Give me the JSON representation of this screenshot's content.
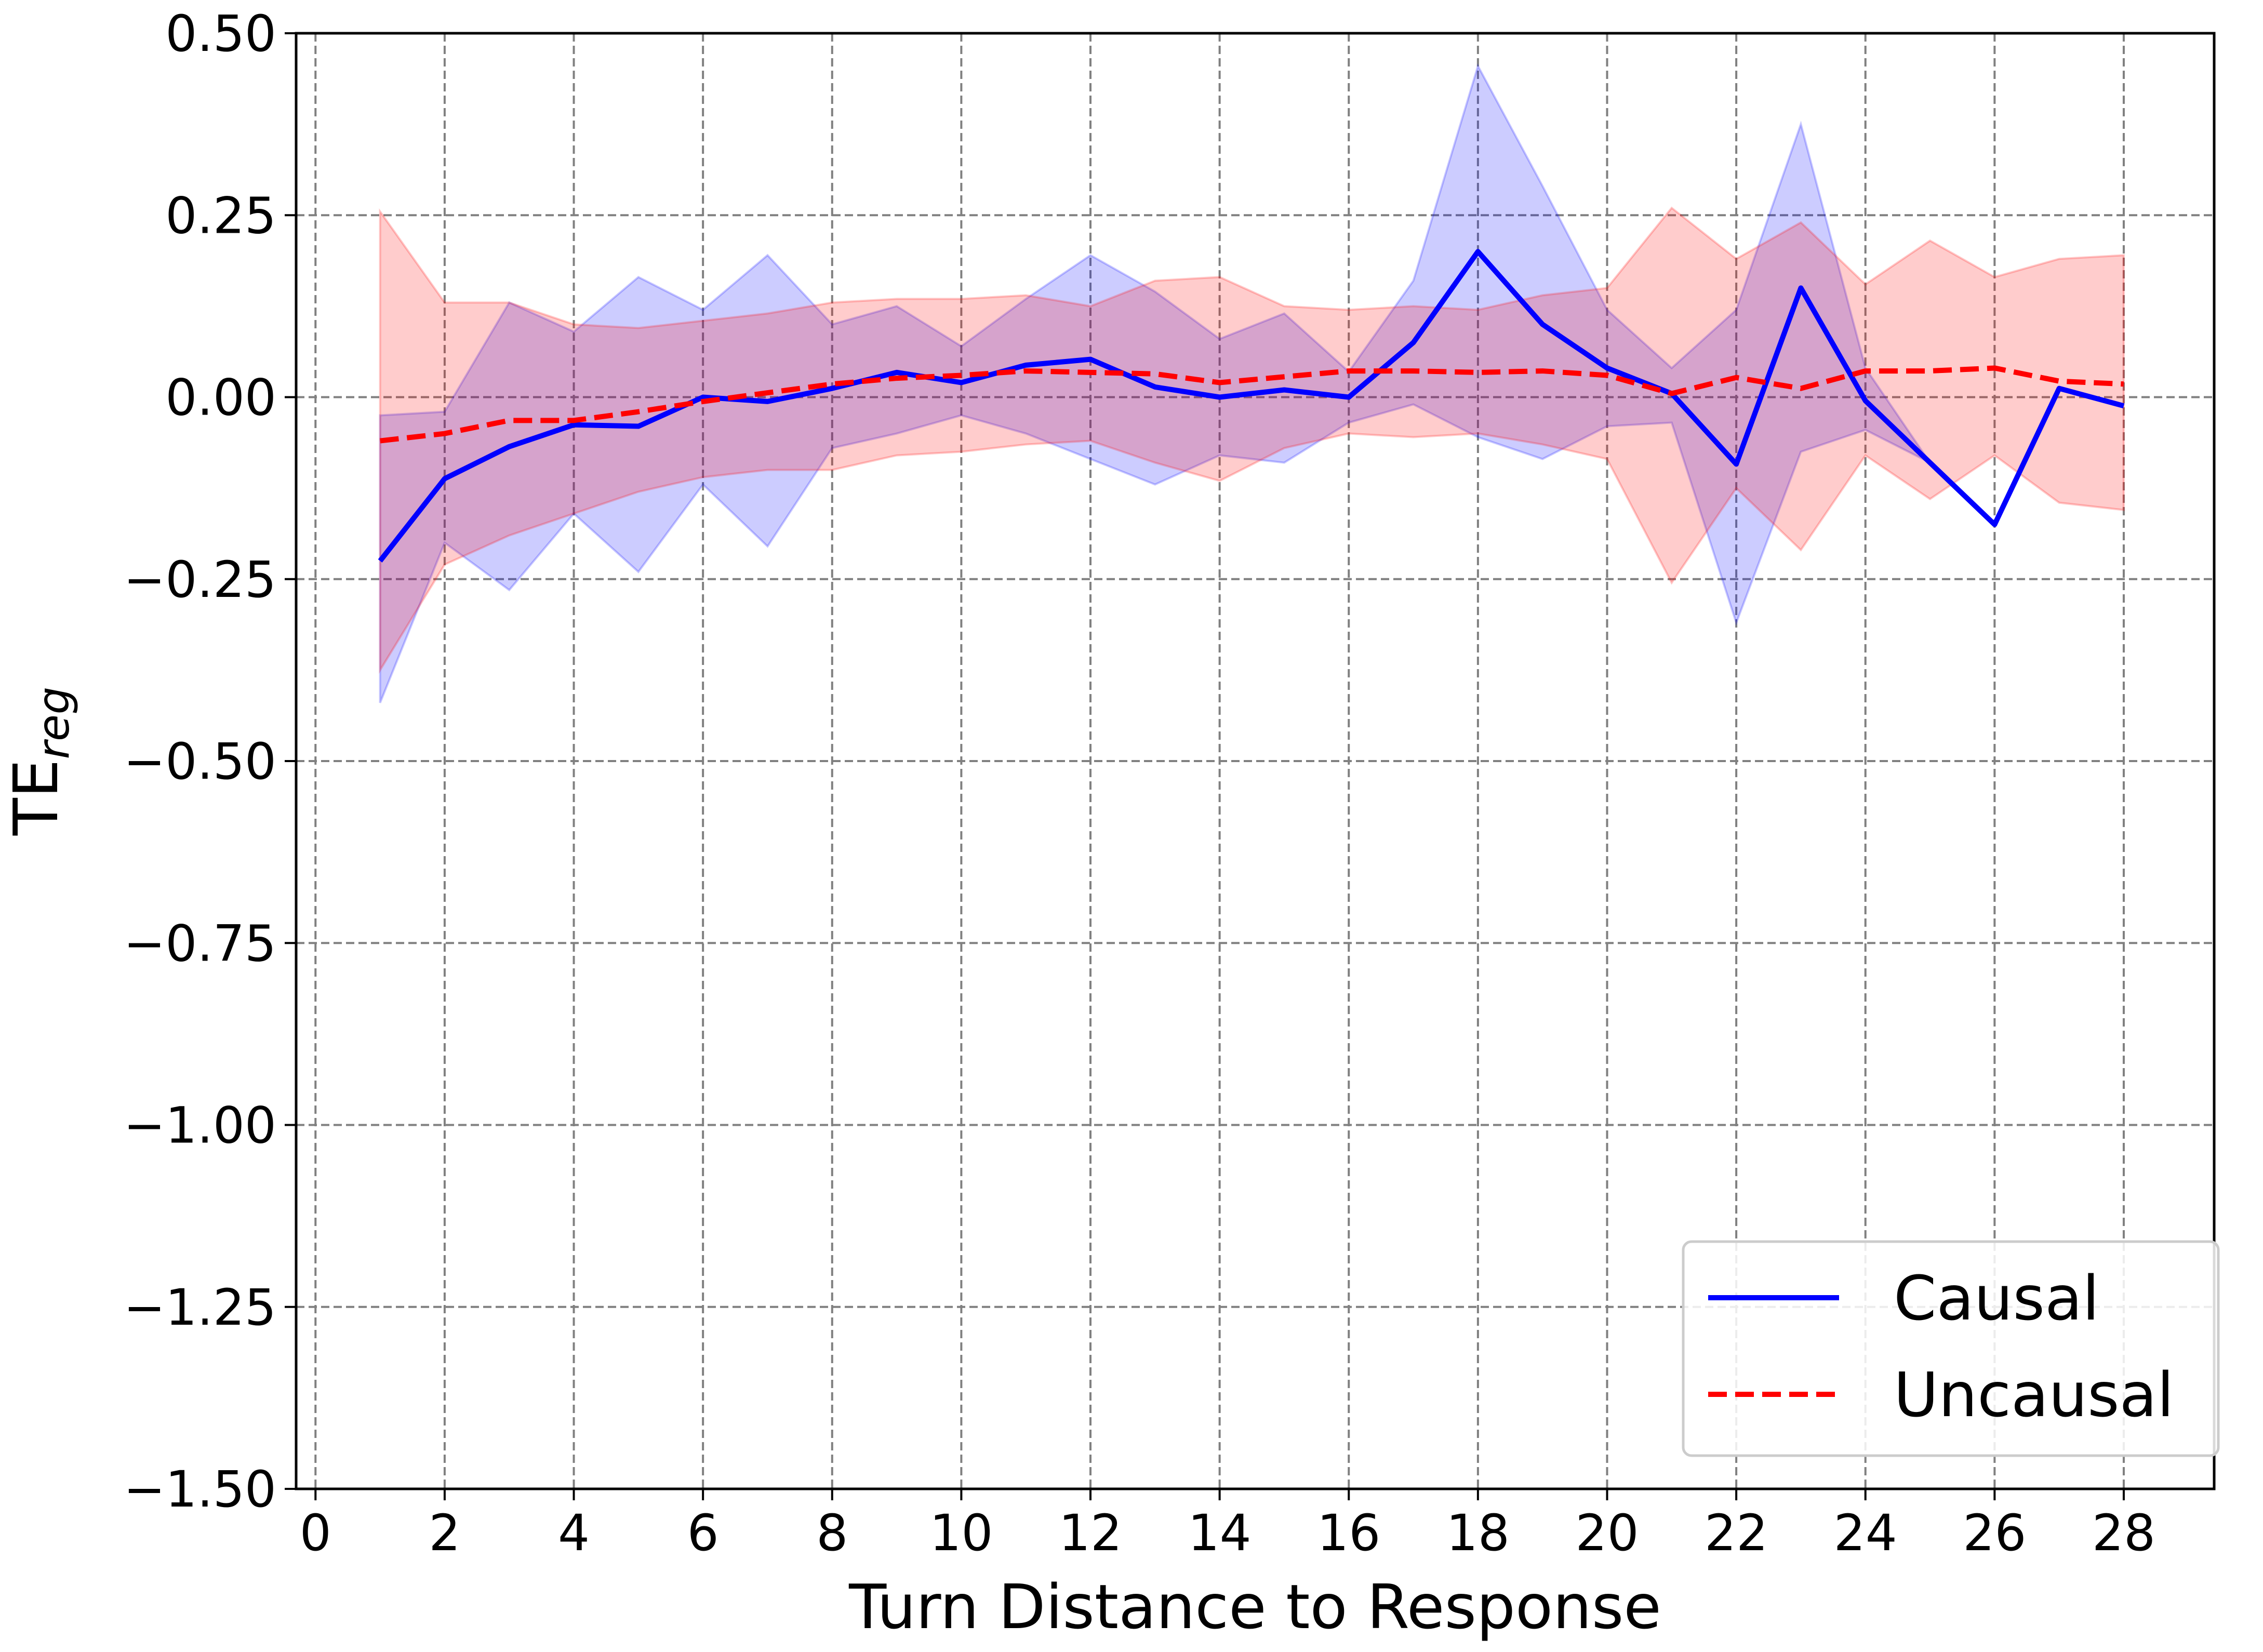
{
  "chart_data": {
    "type": "line",
    "title": "",
    "xlabel": "Turn Distance to Response",
    "ylabel_main": "TE",
    "ylabel_sub": "reg",
    "xlim": [
      -0.3,
      29.4
    ],
    "ylim": [
      -1.5,
      0.5
    ],
    "x_ticks": [
      0,
      2,
      4,
      6,
      8,
      10,
      12,
      14,
      16,
      18,
      20,
      22,
      24,
      26,
      28
    ],
    "x_tick_labels": [
      "0",
      "2",
      "4",
      "6",
      "8",
      "10",
      "12",
      "14",
      "16",
      "18",
      "20",
      "22",
      "24",
      "26",
      "28"
    ],
    "y_ticks": [
      0.5,
      0.25,
      0.0,
      -0.25,
      -0.5,
      -0.75,
      -1.0,
      -1.25,
      -1.5
    ],
    "y_tick_labels": [
      "0.50",
      "0.25",
      "0.00",
      "−0.25",
      "−0.50",
      "−0.75",
      "−1.00",
      "−1.25",
      "−1.50"
    ],
    "grid": true,
    "legend_position": "bottom-right",
    "x": [
      1,
      2,
      3,
      4,
      5,
      6,
      7,
      8,
      9,
      10,
      11,
      12,
      13,
      14,
      15,
      16,
      17,
      18,
      19,
      20,
      21,
      22,
      23,
      24,
      25,
      26,
      27,
      28
    ],
    "series": [
      {
        "name": "Causal",
        "color": "#0000ff",
        "line_style": "solid",
        "values": [
          -0.225,
          -0.112,
          -0.068,
          -0.038,
          -0.04,
          0.0,
          -0.006,
          0.012,
          0.034,
          0.02,
          0.044,
          0.052,
          0.014,
          0.0,
          0.01,
          0.0,
          0.075,
          0.2,
          0.1,
          0.04,
          0.005,
          -0.092,
          0.15,
          -0.005,
          -0.09,
          -0.175,
          0.012,
          -0.012
        ],
        "upper": [
          -0.025,
          -0.02,
          0.13,
          0.09,
          0.165,
          0.12,
          0.195,
          0.1,
          0.125,
          0.07,
          0.135,
          0.195,
          0.145,
          0.08,
          0.115,
          0.035,
          0.16,
          0.455,
          0.29,
          0.12,
          0.04,
          0.12,
          0.375,
          0.04,
          -0.09,
          -0.175,
          0.012,
          -0.012
        ],
        "lower": [
          -0.42,
          -0.2,
          -0.265,
          -0.16,
          -0.24,
          -0.12,
          -0.205,
          -0.07,
          -0.05,
          -0.025,
          -0.05,
          -0.085,
          -0.12,
          -0.08,
          -0.09,
          -0.035,
          -0.01,
          -0.055,
          -0.085,
          -0.04,
          -0.035,
          -0.31,
          -0.075,
          -0.045,
          -0.09,
          -0.175,
          0.012,
          -0.012
        ],
        "band_color": "#0000ff"
      },
      {
        "name": "Uncausal",
        "color": "#ff0000",
        "line_style": "dashed",
        "values": [
          -0.06,
          -0.05,
          -0.032,
          -0.032,
          -0.02,
          -0.006,
          0.006,
          0.018,
          0.026,
          0.03,
          0.036,
          0.034,
          0.032,
          0.02,
          0.028,
          0.036,
          0.036,
          0.034,
          0.036,
          0.03,
          0.005,
          0.027,
          0.012,
          0.036,
          0.036,
          0.04,
          0.022,
          0.018
        ],
        "upper": [
          0.255,
          0.13,
          0.13,
          0.1,
          0.095,
          0.105,
          0.115,
          0.13,
          0.135,
          0.135,
          0.14,
          0.125,
          0.16,
          0.165,
          0.125,
          0.12,
          0.125,
          0.12,
          0.14,
          0.15,
          0.26,
          0.19,
          0.24,
          0.155,
          0.215,
          0.165,
          0.19,
          0.195
        ],
        "lower": [
          -0.375,
          -0.23,
          -0.19,
          -0.16,
          -0.13,
          -0.11,
          -0.1,
          -0.1,
          -0.08,
          -0.075,
          -0.065,
          -0.06,
          -0.09,
          -0.115,
          -0.07,
          -0.05,
          -0.055,
          -0.05,
          -0.065,
          -0.085,
          -0.255,
          -0.125,
          -0.21,
          -0.08,
          -0.14,
          -0.08,
          -0.145,
          -0.155
        ],
        "band_color": "#ff0000"
      }
    ]
  }
}
